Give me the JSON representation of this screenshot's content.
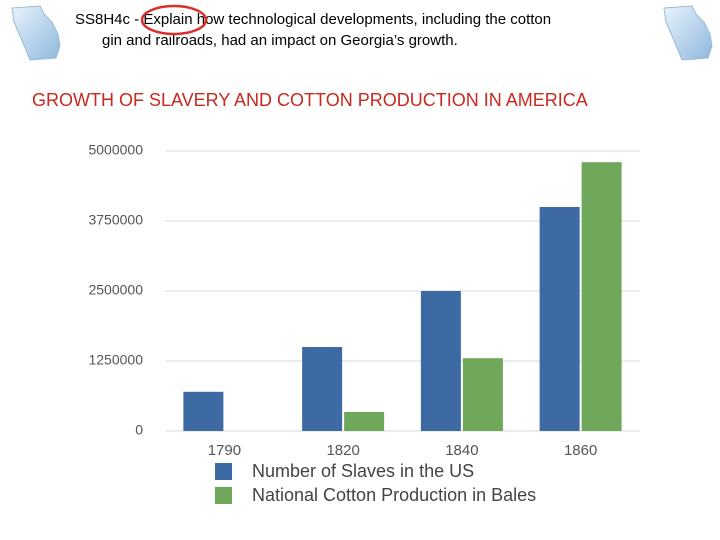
{
  "header": {
    "lines": [
      "SS8H4c - Explain how technological developments,  including the cotton",
      "gin and railroads, had an impact on Georgia’s growth."
    ]
  },
  "chart_data": {
    "type": "bar",
    "title": "GROWTH OF SLAVERY AND COTTON PRODUCTION IN AMERICA",
    "categories": [
      "1790",
      "1820",
      "1840",
      "1860"
    ],
    "series": [
      {
        "name": "Number of Slaves in the US",
        "color": "#3d6aa2",
        "values": [
          700000,
          1500000,
          2500000,
          4000000
        ]
      },
      {
        "name": "National Cotton Production in Bales",
        "color": "#6fa85a",
        "values": [
          0,
          340000,
          1300000,
          4800000
        ]
      }
    ],
    "ylim": [
      0,
      5000000
    ],
    "yticks": [
      0,
      1250000,
      2500000,
      3750000,
      5000000
    ],
    "grid": true
  }
}
